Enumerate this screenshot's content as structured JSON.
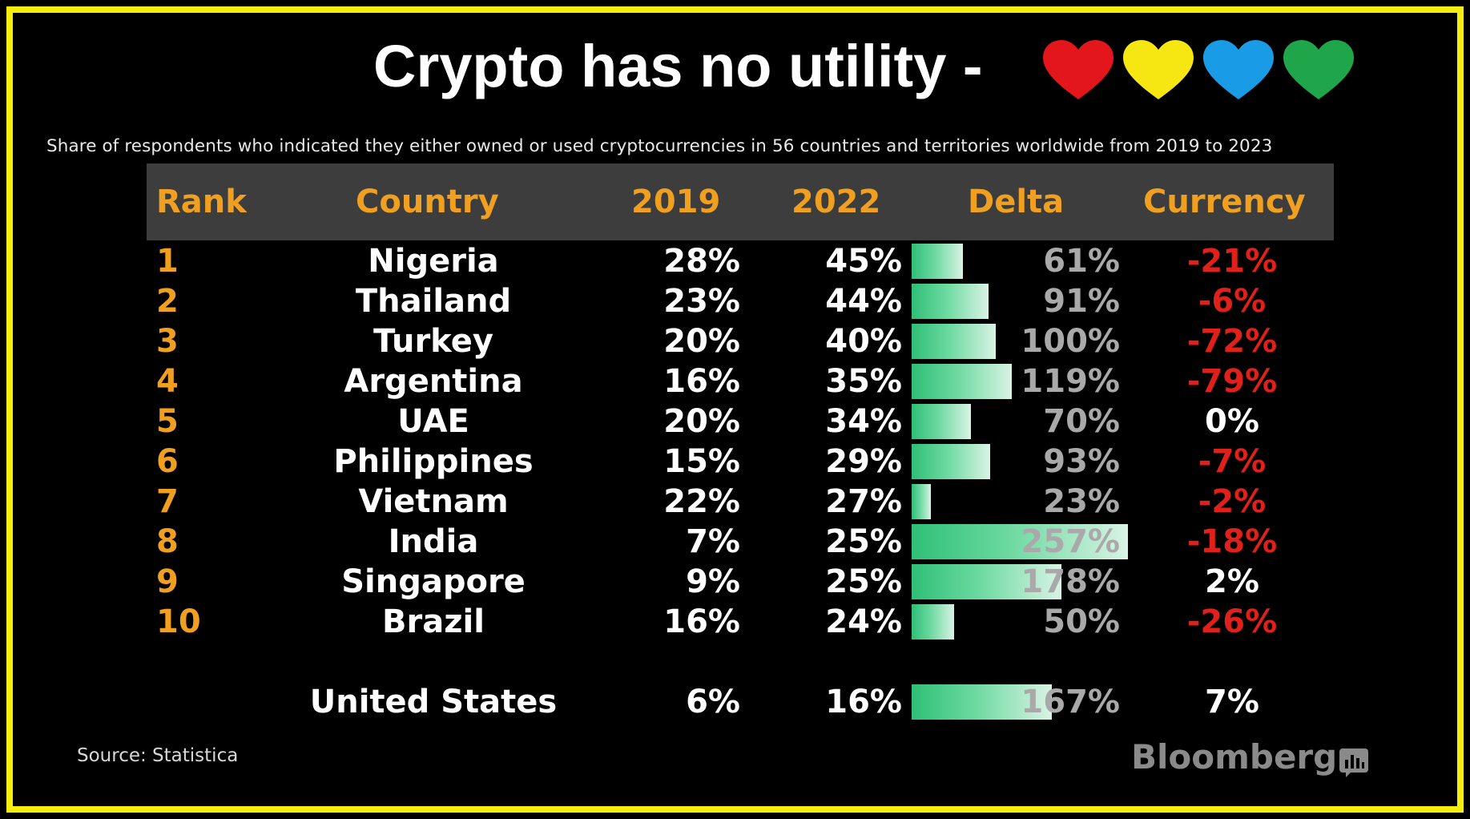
{
  "title": "Crypto has no utility -",
  "hearts": [
    {
      "icon": "red-heart-icon",
      "color": "#e3161b"
    },
    {
      "icon": "yellow-heart-icon",
      "color": "#f6e612"
    },
    {
      "icon": "blue-heart-icon",
      "color": "#1a9be6"
    },
    {
      "icon": "green-heart-icon",
      "color": "#1fa64a"
    }
  ],
  "colors": {
    "frame": "#f5ec10",
    "header_bar": "#3d3d3d",
    "header_text": "#f0a020",
    "rank_text": "#f0a020",
    "delta_text": "#a9a9a9",
    "currency_negative": "#e0201a",
    "bar_gradient": [
      "#2fbf76",
      "#d9f3e5"
    ]
  },
  "chart_data": {
    "type": "table",
    "subtitle": "Share of respondents who indicated they either owned or used cryptocurrencies in 56 countries and territories worldwide from 2019 to 2023",
    "columns": [
      "Rank",
      "Country",
      "2019",
      "2022",
      "Delta",
      "Currency"
    ],
    "rows": [
      {
        "rank": "1",
        "country": "Nigeria",
        "y2019": "28%",
        "y2022": "45%",
        "delta": "61%",
        "delta_value": 61,
        "currency": "-21%",
        "currency_value": -21
      },
      {
        "rank": "2",
        "country": "Thailand",
        "y2019": "23%",
        "y2022": "44%",
        "delta": "91%",
        "delta_value": 91,
        "currency": "-6%",
        "currency_value": -6
      },
      {
        "rank": "3",
        "country": "Turkey",
        "y2019": "20%",
        "y2022": "40%",
        "delta": "100%",
        "delta_value": 100,
        "currency": "-72%",
        "currency_value": -72
      },
      {
        "rank": "4",
        "country": "Argentina",
        "y2019": "16%",
        "y2022": "35%",
        "delta": "119%",
        "delta_value": 119,
        "currency": "-79%",
        "currency_value": -79
      },
      {
        "rank": "5",
        "country": "UAE",
        "y2019": "20%",
        "y2022": "34%",
        "delta": "70%",
        "delta_value": 70,
        "currency": "0%",
        "currency_value": 0
      },
      {
        "rank": "6",
        "country": "Philippines",
        "y2019": "15%",
        "y2022": "29%",
        "delta": "93%",
        "delta_value": 93,
        "currency": "-7%",
        "currency_value": -7
      },
      {
        "rank": "7",
        "country": "Vietnam",
        "y2019": "22%",
        "y2022": "27%",
        "delta": "23%",
        "delta_value": 23,
        "currency": "-2%",
        "currency_value": -2
      },
      {
        "rank": "8",
        "country": "India",
        "y2019": "7%",
        "y2022": "25%",
        "delta": "257%",
        "delta_value": 257,
        "currency": "-18%",
        "currency_value": -18
      },
      {
        "rank": "9",
        "country": "Singapore",
        "y2019": "9%",
        "y2022": "25%",
        "delta": "178%",
        "delta_value": 178,
        "currency": "2%",
        "currency_value": 2
      },
      {
        "rank": "10",
        "country": "Brazil",
        "y2019": "16%",
        "y2022": "24%",
        "delta": "50%",
        "delta_value": 50,
        "currency": "-26%",
        "currency_value": -26
      }
    ],
    "extra_row": {
      "rank": "",
      "country": "United States",
      "y2019": "6%",
      "y2022": "16%",
      "delta": "167%",
      "delta_value": 167,
      "currency": "7%",
      "currency_value": 7
    }
  },
  "footer": {
    "source": "Source: Statistica",
    "brand": "Bloomberg",
    "brand_icon": "bloomberg-chart-icon"
  }
}
